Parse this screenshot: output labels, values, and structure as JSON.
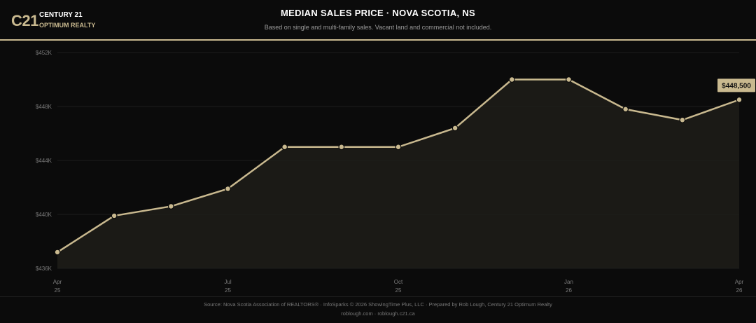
{
  "brand": {
    "mark": "C21",
    "name": "CENTURY 21",
    "office": "OPTIMUM REALTY"
  },
  "header": {
    "title": "MEDIAN SALES PRICE · NOVA SCOTIA, NS",
    "subtitle": "Based on single and multi-family sales. Vacant land and commercial not included."
  },
  "footer": {
    "source": "Source: Nova Scotia Association of REALTORS® · InfoSparks © 2026 ShowingTime Plus, LLC · Prepared by Rob Lough, Century 21 Optimum Realty",
    "sites": "roblough.com · roblough.c21.ca"
  },
  "colors": {
    "accent": "#c9b98f",
    "background": "#0b0b0b",
    "area_fill": "#1f1d19"
  },
  "chart_data": {
    "type": "area",
    "x": [
      "Apr 25",
      "May 25",
      "Jun 25",
      "Jul 25",
      "Aug 25",
      "Sep 25",
      "Oct 25",
      "Nov 25",
      "Dec 25",
      "Jan 26",
      "Feb 26",
      "Mar 26",
      "Apr 26"
    ],
    "values": [
      437200,
      439900,
      440600,
      441900,
      445000,
      445000,
      445000,
      446400,
      450000,
      450000,
      447800,
      447000,
      448500
    ],
    "ylim": [
      436000,
      452000
    ],
    "y_ticks": [
      436000,
      440000,
      444000,
      448000,
      452000
    ],
    "y_tick_labels": [
      "$436K",
      "$440K",
      "$444K",
      "$448K",
      "$452K"
    ],
    "x_ticks": [
      {
        "index": 0,
        "month": "Apr",
        "year": "25"
      },
      {
        "index": 3,
        "month": "Jul",
        "year": "25"
      },
      {
        "index": 6,
        "month": "Oct",
        "year": "25"
      },
      {
        "index": 9,
        "month": "Jan",
        "year": "26"
      },
      {
        "index": 12,
        "month": "Apr",
        "year": "26"
      }
    ],
    "last_value_label": "$448,500",
    "grid": true
  }
}
